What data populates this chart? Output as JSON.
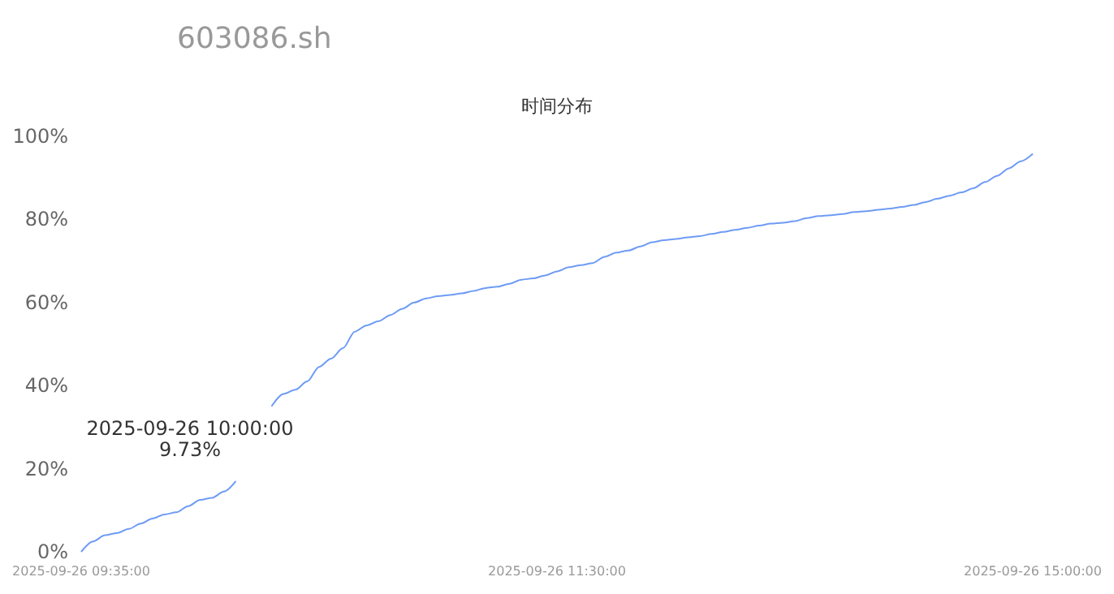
{
  "chart_data": {
    "type": "line",
    "title": "603086.sh",
    "subtitle": "时间分布",
    "categories": [
      "2025-09-26 09:35:00",
      null,
      null,
      null,
      null,
      null,
      null,
      null,
      null,
      null,
      null,
      null,
      null,
      null,
      null,
      null,
      null,
      null,
      null,
      null,
      null,
      null,
      null,
      null,
      null,
      null,
      null,
      null,
      null,
      null,
      null,
      null,
      null,
      null,
      null,
      null,
      null,
      null,
      null,
      null,
      "2025-09-26 11:30:00",
      null,
      null,
      null,
      null,
      null,
      null,
      null,
      null,
      null,
      null,
      null,
      null,
      null,
      null,
      null,
      null,
      null,
      null,
      null,
      null,
      null,
      null,
      null,
      null,
      null,
      null,
      null,
      null,
      null,
      null,
      null,
      null,
      null,
      null,
      null,
      null,
      null,
      null,
      null,
      "2025-09-26 15:00:00"
    ],
    "series": [
      {
        "color": "#6e9bf5",
        "values": [
          0,
          2.5,
          4,
          4.5,
          5.5,
          6.8,
          8,
          9,
          9.5,
          11,
          12.5,
          13,
          14.5,
          17,
          null,
          null,
          35,
          38,
          39,
          41,
          44.5,
          46.5,
          49,
          53,
          54.5,
          55.5,
          57,
          58.5,
          60,
          61,
          61.5,
          61.8,
          62.2,
          62.8,
          63.5,
          63.8,
          64.5,
          65.5,
          65.8,
          66.5,
          67.5,
          68.5,
          69,
          69.5,
          71,
          72,
          72.5,
          73.5,
          74.5,
          75,
          75.3,
          75.7,
          76,
          76.5,
          77,
          77.5,
          78,
          78.5,
          79,
          79.2,
          79.6,
          80.3,
          80.8,
          81,
          81.3,
          81.8,
          82,
          82.3,
          82.6,
          83,
          83.5,
          84.2,
          85,
          85.7,
          86.5,
          87.5,
          89,
          90.5,
          92.3,
          94,
          95.8
        ]
      }
    ],
    "ylim": [
      0,
      100
    ],
    "yticks": [
      {
        "value": 0,
        "label": "0%"
      },
      {
        "value": 20,
        "label": "20%"
      },
      {
        "value": 40,
        "label": "40%"
      },
      {
        "value": 60,
        "label": "60%"
      },
      {
        "value": 80,
        "label": "80%"
      },
      {
        "value": 100,
        "label": "100%"
      }
    ],
    "annotations": [
      "2025-09-26 10:00:00\n9.73%"
    ],
    "grid": false,
    "marker": "none",
    "line_style": "solid"
  }
}
